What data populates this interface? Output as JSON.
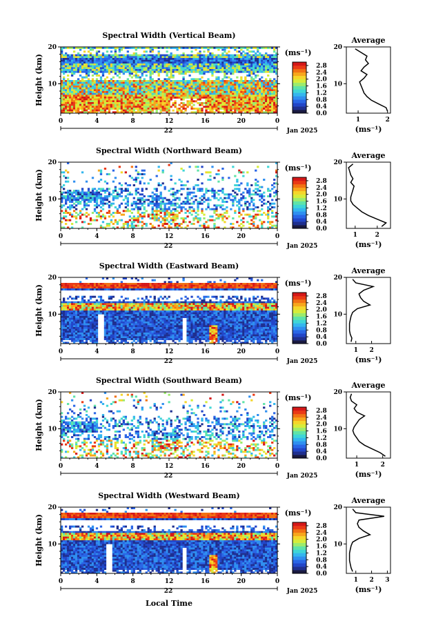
{
  "figure": {
    "ylabel": "Height (km)",
    "xlabel": "Local Time",
    "avg_title": "Average",
    "colorbar_unit": "(ms⁻¹)",
    "avg_unit": "(ms⁻¹)",
    "colormap": [
      "#1a1a40",
      "#1f2f8f",
      "#2246c8",
      "#2a66e6",
      "#2f8ff0",
      "#34b6ee",
      "#3fd6d6",
      "#5fe3a8",
      "#9cec6c",
      "#d6ec3a",
      "#f5d62a",
      "#f7a71c",
      "#f27214",
      "#ea3a16",
      "#d51818"
    ]
  },
  "chart_data": [
    {
      "type": "heatmap",
      "title": "Spectral Width (Vertical Beam)",
      "x_ticks": [
        "0",
        "4",
        "8",
        "12",
        "16",
        "20",
        "0"
      ],
      "date_label": "22",
      "month_label": "Jan 2025",
      "y_ticks": [
        "20",
        "10"
      ],
      "xlim": [
        0,
        24
      ],
      "ylim": [
        2,
        20
      ],
      "colorbar_ticks": [
        "2.8",
        "2.4",
        "2.0",
        "1.6",
        "1.2",
        "0.8",
        "0.4",
        "0.0"
      ],
      "colorbar_range": [
        0,
        3.0
      ],
      "average_profile": {
        "x_ticks": [
          "1",
          "2"
        ],
        "xlim": [
          0.6,
          2.1
        ],
        "y_ticks": [
          "20",
          "10"
        ],
        "height": [
          2.5,
          3.5,
          4.5,
          5.5,
          6.5,
          7.5,
          8.5,
          9.5,
          10.5,
          11.5,
          12.5,
          13.5,
          14.5,
          15.5,
          16.5,
          17.5,
          18.5,
          19.5
        ],
        "values": [
          2.0,
          1.95,
          1.7,
          1.45,
          1.3,
          1.2,
          1.15,
          1.1,
          1.05,
          1.2,
          1.3,
          1.1,
          1.2,
          1.35,
          1.25,
          1.3,
          1.1,
          0.9
        ]
      }
    },
    {
      "type": "heatmap",
      "title": "Spectral Width (Northward Beam)",
      "x_ticks": [
        "0",
        "4",
        "8",
        "12",
        "16",
        "20",
        "0"
      ],
      "date_label": "22",
      "month_label": "Jan 2025",
      "y_ticks": [
        "20",
        "10"
      ],
      "xlim": [
        0,
        24
      ],
      "ylim": [
        2,
        20
      ],
      "colorbar_ticks": [
        "2.8",
        "2.4",
        "2.0",
        "1.6",
        "1.2",
        "0.8",
        "0.4",
        "0.0"
      ],
      "colorbar_range": [
        0,
        3.0
      ],
      "average_profile": {
        "x_ticks": [
          "1",
          "2"
        ],
        "xlim": [
          0.6,
          2.6
        ],
        "y_ticks": [
          "20",
          "10"
        ],
        "height": [
          2.5,
          3.5,
          4.5,
          5.5,
          6.5,
          7.5,
          8.5,
          9.5,
          10.5,
          11.5,
          12.5,
          13.5,
          14.5,
          15.5,
          16.5,
          17.5,
          18.5,
          19.5
        ],
        "values": [
          2.2,
          2.4,
          2.0,
          1.6,
          1.3,
          1.1,
          0.9,
          0.8,
          0.8,
          0.85,
          0.9,
          0.95,
          0.8,
          0.9,
          0.8,
          0.75,
          0.7,
          0.9
        ]
      }
    },
    {
      "type": "heatmap",
      "title": "Spectral Width (Eastward Beam)",
      "x_ticks": [
        "0",
        "4",
        "8",
        "12",
        "16",
        "20",
        "0"
      ],
      "date_label": "22",
      "month_label": "Jan 2025",
      "y_ticks": [
        "20",
        "10"
      ],
      "xlim": [
        0,
        24
      ],
      "ylim": [
        2,
        20
      ],
      "colorbar_ticks": [
        "2.8",
        "2.4",
        "2.0",
        "1.6",
        "1.2",
        "0.8",
        "0.4",
        "0.0"
      ],
      "colorbar_range": [
        0,
        3.0
      ],
      "average_profile": {
        "x_ticks": [
          "1",
          "2"
        ],
        "xlim": [
          0.4,
          3.2
        ],
        "y_ticks": [
          "20",
          "10"
        ],
        "height": [
          2.5,
          3.5,
          4.5,
          5.5,
          6.5,
          7.5,
          8.5,
          9.5,
          10.5,
          11.5,
          12.5,
          13.5,
          14.5,
          15.5,
          16.5,
          17.5,
          18.5,
          19.5
        ],
        "values": [
          0.7,
          0.75,
          0.65,
          0.6,
          0.6,
          0.6,
          0.65,
          0.7,
          0.8,
          1.1,
          1.9,
          1.5,
          1.3,
          1.2,
          1.5,
          2.1,
          1.0,
          0.8
        ]
      }
    },
    {
      "type": "heatmap",
      "title": "Spectral Width (Southward Beam)",
      "x_ticks": [
        "0",
        "4",
        "8",
        "12",
        "16",
        "20",
        "0"
      ],
      "date_label": "22",
      "month_label": "Jan 2025",
      "y_ticks": [
        "20",
        "10"
      ],
      "xlim": [
        0,
        24
      ],
      "ylim": [
        2,
        20
      ],
      "colorbar_ticks": [
        "2.8",
        "2.4",
        "2.0",
        "1.6",
        "1.2",
        "0.8",
        "0.4",
        "0.0"
      ],
      "colorbar_range": [
        0,
        3.0
      ],
      "average_profile": {
        "x_ticks": [
          "1",
          "2"
        ],
        "xlim": [
          0.6,
          2.3
        ],
        "y_ticks": [
          "20",
          "10"
        ],
        "height": [
          2.5,
          3.5,
          4.5,
          5.5,
          6.5,
          7.5,
          8.5,
          9.5,
          10.5,
          11.5,
          12.5,
          13.5,
          14.5,
          15.5,
          16.5,
          17.5,
          18.5,
          19.5
        ],
        "values": [
          2.1,
          1.9,
          1.6,
          1.3,
          1.1,
          1.0,
          0.9,
          0.85,
          0.9,
          1.0,
          1.1,
          1.3,
          1.0,
          0.9,
          1.0,
          0.8,
          0.75,
          0.8
        ]
      }
    },
    {
      "type": "heatmap",
      "title": "Spectral Width (Westward Beam)",
      "x_ticks": [
        "0",
        "4",
        "8",
        "12",
        "16",
        "20",
        "0"
      ],
      "date_label": "22",
      "month_label": "Jan 2025",
      "y_ticks": [
        "20",
        "10"
      ],
      "xlim": [
        0,
        24
      ],
      "ylim": [
        2,
        20
      ],
      "colorbar_ticks": [
        "2.8",
        "2.4",
        "2.0",
        "1.6",
        "1.2",
        "0.8",
        "0.4",
        "0.0"
      ],
      "colorbar_range": [
        0,
        3.0
      ],
      "average_profile": {
        "x_ticks": [
          "1",
          "2",
          "3"
        ],
        "xlim": [
          0.4,
          3.2
        ],
        "y_ticks": [
          "20",
          "10"
        ],
        "height": [
          2.5,
          3.5,
          4.5,
          5.5,
          6.5,
          7.5,
          8.5,
          9.5,
          10.5,
          11.5,
          12.5,
          13.5,
          14.5,
          15.5,
          16.5,
          17.5,
          18.5,
          19.5
        ],
        "values": [
          0.8,
          0.7,
          0.65,
          0.6,
          0.6,
          0.6,
          0.65,
          0.7,
          0.8,
          1.2,
          1.9,
          1.5,
          1.2,
          1.1,
          1.2,
          2.8,
          1.0,
          0.8
        ]
      }
    }
  ]
}
